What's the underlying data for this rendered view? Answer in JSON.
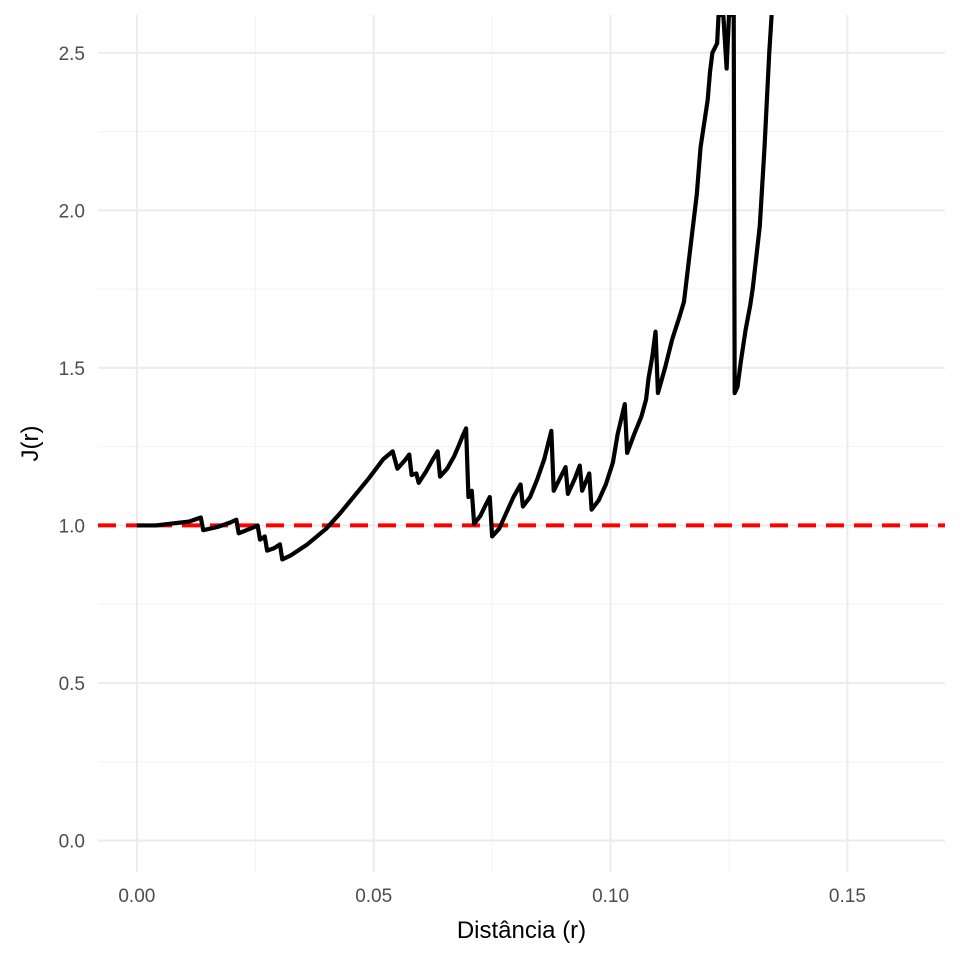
{
  "chart_data": {
    "type": "line",
    "title": "",
    "xlabel": "Distância (r)",
    "ylabel": "J(r)",
    "xlim": [
      -0.0082,
      0.1706
    ],
    "ylim": [
      -0.1,
      2.62
    ],
    "x_ticks": [
      {
        "value": 0.0,
        "label": "0.00"
      },
      {
        "value": 0.05,
        "label": "0.05"
      },
      {
        "value": 0.1,
        "label": "0.10"
      },
      {
        "value": 0.15,
        "label": "0.15"
      }
    ],
    "y_ticks": [
      {
        "value": 0.0,
        "label": "0.0"
      },
      {
        "value": 0.5,
        "label": "0.5"
      },
      {
        "value": 1.0,
        "label": "1.0"
      },
      {
        "value": 1.5,
        "label": "1.5"
      },
      {
        "value": 2.0,
        "label": "2.0"
      },
      {
        "value": 2.5,
        "label": "2.5"
      }
    ],
    "grid": true,
    "reference_line": {
      "y": 1.0,
      "style": "dashed",
      "color": "#ff0000"
    },
    "series": [
      {
        "color": "#000000",
        "points": [
          [
            0.0,
            1.0
          ],
          [
            0.004,
            1.0
          ],
          [
            0.008,
            1.007
          ],
          [
            0.011,
            1.012
          ],
          [
            0.0135,
            1.025
          ],
          [
            0.014,
            0.985
          ],
          [
            0.017,
            0.995
          ],
          [
            0.0195,
            1.008
          ],
          [
            0.021,
            1.018
          ],
          [
            0.0215,
            0.975
          ],
          [
            0.024,
            0.99
          ],
          [
            0.0255,
            1.0
          ],
          [
            0.026,
            0.955
          ],
          [
            0.027,
            0.965
          ],
          [
            0.0275,
            0.92
          ],
          [
            0.029,
            0.928
          ],
          [
            0.0302,
            0.94
          ],
          [
            0.0307,
            0.892
          ],
          [
            0.0325,
            0.905
          ],
          [
            0.036,
            0.94
          ],
          [
            0.04,
            0.99
          ],
          [
            0.043,
            1.04
          ],
          [
            0.046,
            1.095
          ],
          [
            0.049,
            1.15
          ],
          [
            0.052,
            1.21
          ],
          [
            0.054,
            1.235
          ],
          [
            0.055,
            1.18
          ],
          [
            0.0565,
            1.205
          ],
          [
            0.0575,
            1.225
          ],
          [
            0.058,
            1.16
          ],
          [
            0.059,
            1.165
          ],
          [
            0.0595,
            1.135
          ],
          [
            0.061,
            1.17
          ],
          [
            0.0625,
            1.21
          ],
          [
            0.0635,
            1.235
          ],
          [
            0.064,
            1.155
          ],
          [
            0.0655,
            1.18
          ],
          [
            0.067,
            1.22
          ],
          [
            0.068,
            1.255
          ],
          [
            0.0688,
            1.285
          ],
          [
            0.0695,
            1.308
          ],
          [
            0.07,
            1.09
          ],
          [
            0.0707,
            1.11
          ],
          [
            0.0712,
            1.005
          ],
          [
            0.0725,
            1.03
          ],
          [
            0.0738,
            1.07
          ],
          [
            0.0745,
            1.09
          ],
          [
            0.075,
            0.965
          ],
          [
            0.0765,
            0.99
          ],
          [
            0.078,
            1.04
          ],
          [
            0.0795,
            1.09
          ],
          [
            0.081,
            1.13
          ],
          [
            0.0815,
            1.06
          ],
          [
            0.083,
            1.09
          ],
          [
            0.0845,
            1.145
          ],
          [
            0.086,
            1.21
          ],
          [
            0.0875,
            1.3
          ],
          [
            0.088,
            1.11
          ],
          [
            0.089,
            1.14
          ],
          [
            0.0905,
            1.185
          ],
          [
            0.091,
            1.1
          ],
          [
            0.0925,
            1.15
          ],
          [
            0.0935,
            1.19
          ],
          [
            0.094,
            1.11
          ],
          [
            0.0955,
            1.165
          ],
          [
            0.096,
            1.05
          ],
          [
            0.0975,
            1.08
          ],
          [
            0.099,
            1.13
          ],
          [
            0.1005,
            1.2
          ],
          [
            0.1015,
            1.29
          ],
          [
            0.103,
            1.385
          ],
          [
            0.1035,
            1.23
          ],
          [
            0.105,
            1.29
          ],
          [
            0.1065,
            1.345
          ],
          [
            0.1075,
            1.4
          ],
          [
            0.108,
            1.465
          ],
          [
            0.1088,
            1.535
          ],
          [
            0.1095,
            1.615
          ],
          [
            0.11,
            1.42
          ],
          [
            0.1115,
            1.5
          ],
          [
            0.113,
            1.59
          ],
          [
            0.1145,
            1.66
          ],
          [
            0.1155,
            1.71
          ],
          [
            0.117,
            1.9
          ],
          [
            0.1182,
            2.05
          ],
          [
            0.119,
            2.2
          ],
          [
            0.12,
            2.3
          ],
          [
            0.1205,
            2.35
          ],
          [
            0.121,
            2.44
          ],
          [
            0.1215,
            2.5
          ],
          [
            0.1225,
            2.53
          ],
          [
            0.1228,
            2.62
          ],
          [
            0.1238,
            2.62
          ],
          [
            0.1245,
            2.45
          ],
          [
            0.125,
            2.62
          ],
          [
            0.126,
            2.62
          ],
          [
            0.1262,
            1.42
          ],
          [
            0.1268,
            1.44
          ],
          [
            0.1275,
            1.52
          ],
          [
            0.1285,
            1.62
          ],
          [
            0.1295,
            1.7
          ],
          [
            0.13,
            1.75
          ],
          [
            0.1315,
            1.95
          ],
          [
            0.1325,
            2.2
          ],
          [
            0.1335,
            2.5
          ],
          [
            0.134,
            2.62
          ]
        ]
      }
    ]
  }
}
